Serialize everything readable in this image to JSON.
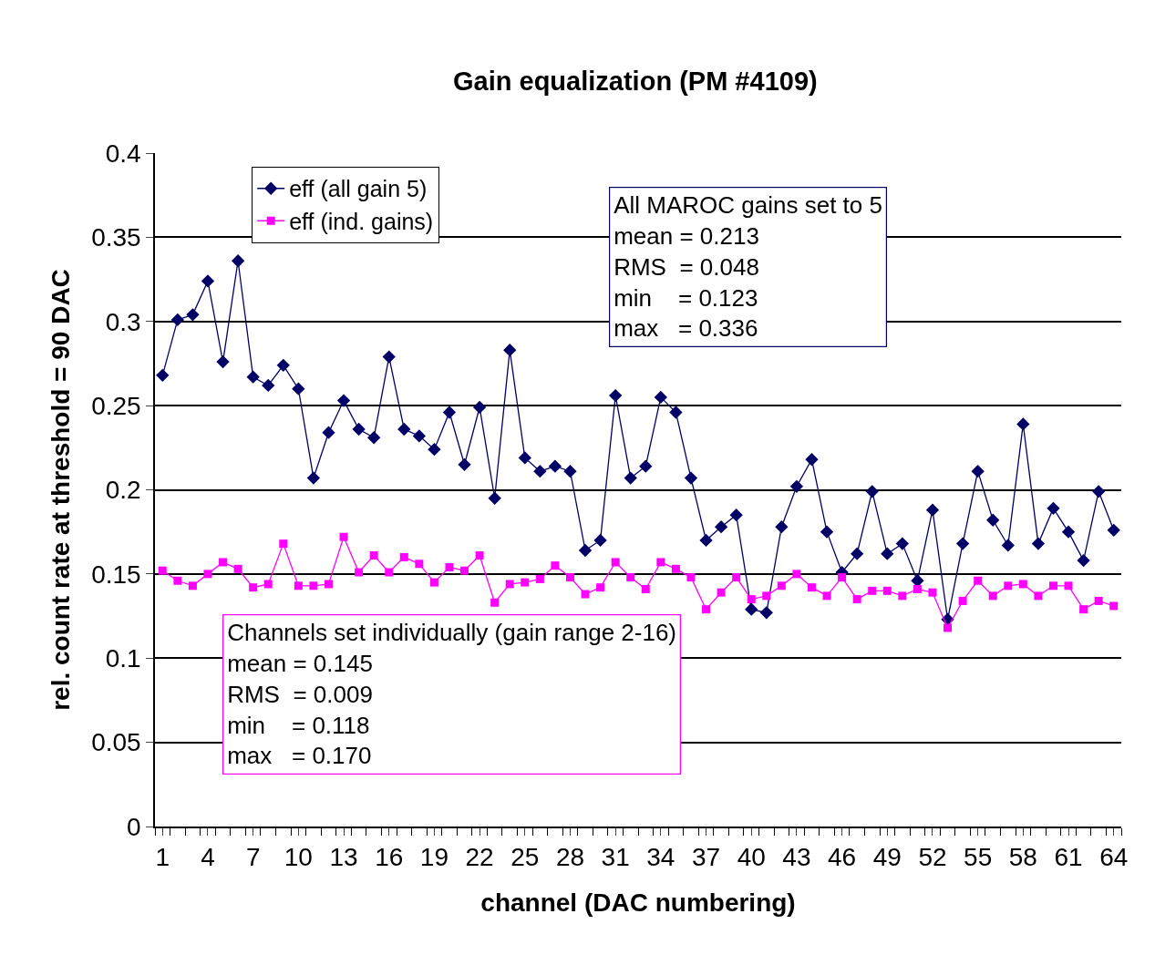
{
  "chart_data": {
    "type": "line",
    "title": "Gain equalization (PM #4109)",
    "xlabel": "channel (DAC numbering)",
    "ylabel": "rel. count rate at threshold = 90 DAC",
    "x": [
      1,
      2,
      3,
      4,
      5,
      6,
      7,
      8,
      9,
      10,
      11,
      12,
      13,
      14,
      15,
      16,
      17,
      18,
      19,
      20,
      21,
      22,
      23,
      24,
      25,
      26,
      27,
      28,
      29,
      30,
      31,
      32,
      33,
      34,
      35,
      36,
      37,
      38,
      39,
      40,
      41,
      42,
      43,
      44,
      45,
      46,
      47,
      48,
      49,
      50,
      51,
      52,
      53,
      54,
      55,
      56,
      57,
      58,
      59,
      60,
      61,
      62,
      63,
      64
    ],
    "series": [
      {
        "name": "eff (all gain 5)",
        "color": "#000066",
        "marker": "diamond",
        "values": [
          0.268,
          0.301,
          0.304,
          0.324,
          0.276,
          0.336,
          0.267,
          0.262,
          0.274,
          0.26,
          0.207,
          0.234,
          0.253,
          0.236,
          0.231,
          0.279,
          0.236,
          0.232,
          0.224,
          0.246,
          0.215,
          0.249,
          0.195,
          0.283,
          0.219,
          0.211,
          0.214,
          0.211,
          0.164,
          0.17,
          0.256,
          0.207,
          0.214,
          0.255,
          0.246,
          0.207,
          0.17,
          0.178,
          0.185,
          0.129,
          0.127,
          0.178,
          0.202,
          0.218,
          0.175,
          0.151,
          0.162,
          0.199,
          0.162,
          0.168,
          0.146,
          0.188,
          0.123,
          0.168,
          0.211,
          0.182,
          0.167,
          0.239,
          0.168,
          0.189,
          0.175,
          0.158,
          0.199,
          0.176
        ]
      },
      {
        "name": "eff (ind. gains)",
        "color": "#ff00ff",
        "marker": "square",
        "values": [
          0.152,
          0.146,
          0.143,
          0.15,
          0.157,
          0.153,
          0.142,
          0.144,
          0.168,
          0.143,
          0.143,
          0.144,
          0.172,
          0.151,
          0.161,
          0.151,
          0.16,
          0.156,
          0.145,
          0.154,
          0.152,
          0.161,
          0.133,
          0.144,
          0.145,
          0.147,
          0.155,
          0.148,
          0.138,
          0.142,
          0.157,
          0.148,
          0.141,
          0.157,
          0.153,
          0.148,
          0.129,
          0.139,
          0.148,
          0.135,
          0.137,
          0.143,
          0.15,
          0.142,
          0.137,
          0.148,
          0.135,
          0.14,
          0.14,
          0.137,
          0.141,
          0.139,
          0.118,
          0.134,
          0.146,
          0.137,
          0.143,
          0.144,
          0.137,
          0.143,
          0.143,
          0.129,
          0.134,
          0.131
        ]
      }
    ],
    "xlim": [
      0.5,
      64.5
    ],
    "xticks": [
      1,
      4,
      7,
      10,
      13,
      16,
      19,
      22,
      25,
      28,
      31,
      34,
      37,
      40,
      43,
      46,
      49,
      52,
      55,
      58,
      61,
      64
    ],
    "ylim": [
      0,
      0.4
    ],
    "yticks": [
      {
        "value": 0,
        "label": "0"
      },
      0.05,
      0.1,
      0.15,
      0.2,
      0.25,
      0.3,
      0.35,
      0.4
    ],
    "grid": "y",
    "legend": "top left",
    "annotations": [
      "All MAROC gains set to 5\nmean = 0.213\nRMS  = 0.048\nmin    = 0.123\nmax   = 0.336",
      "Channels set individually (gain range 2-16)\nmean = 0.145\nRMS  = 0.009\nmin    = 0.118\nmax   = 0.170"
    ]
  }
}
